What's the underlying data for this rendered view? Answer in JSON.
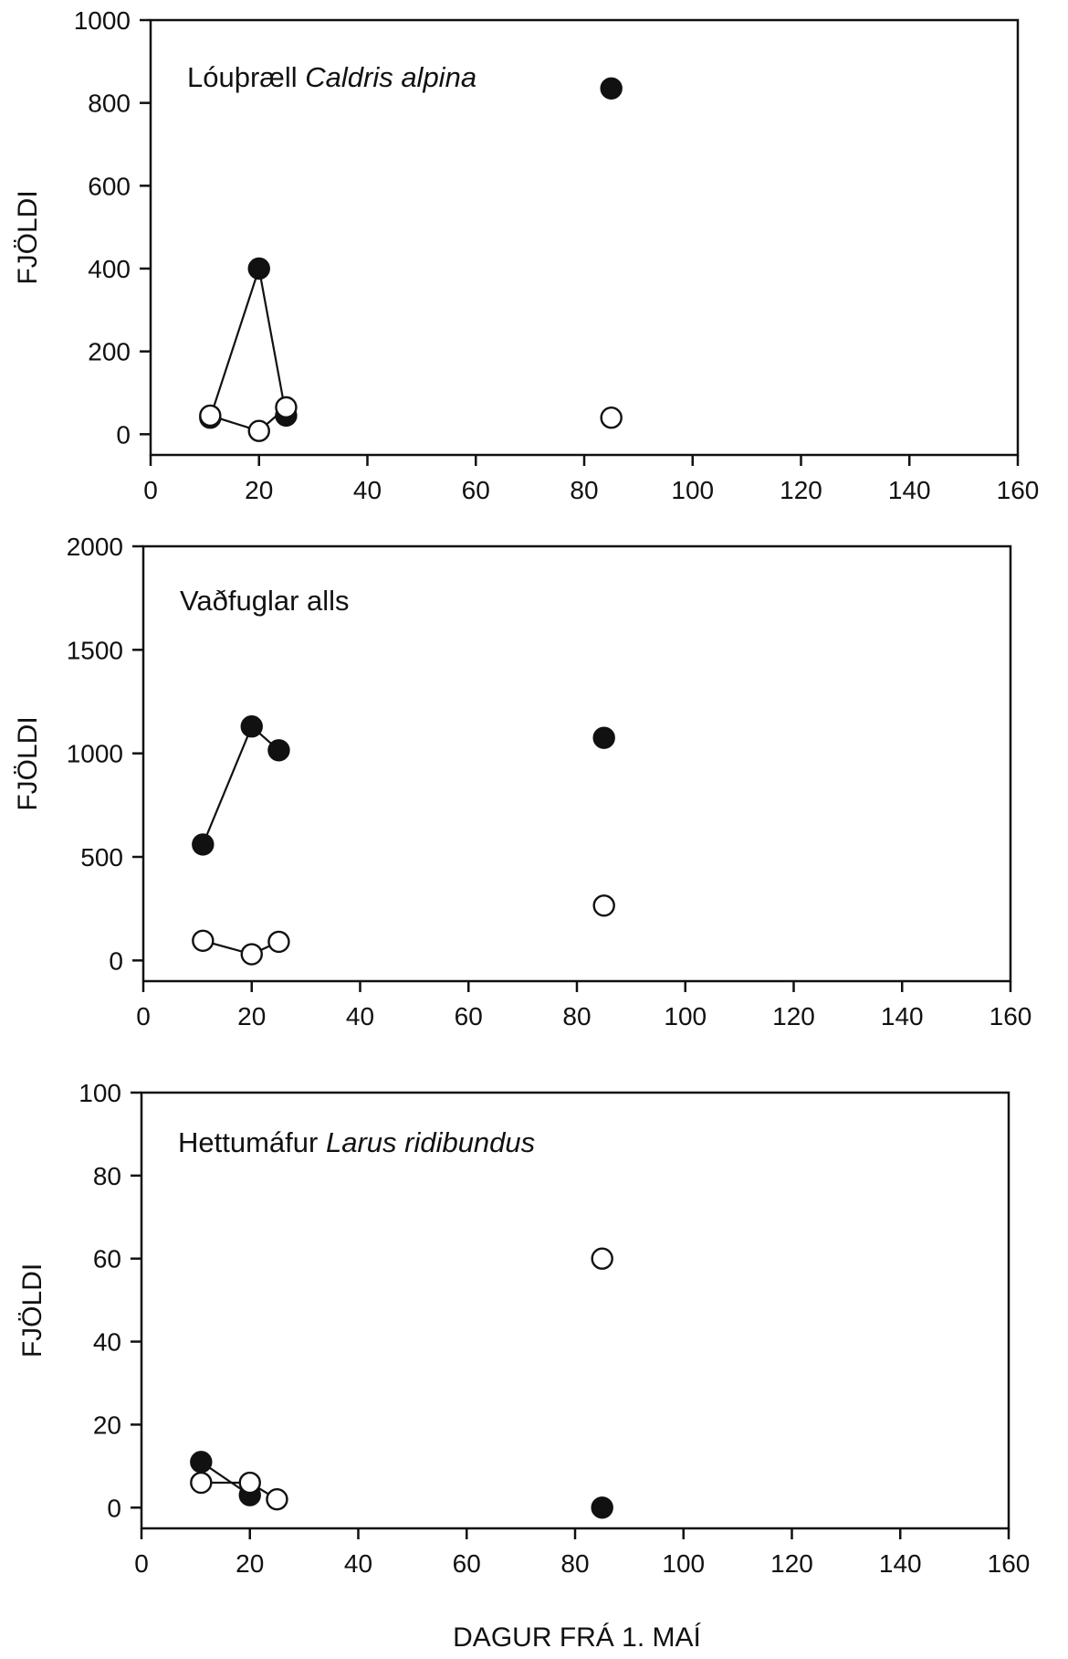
{
  "chart_data": [
    {
      "type": "scatter",
      "title": "Lóuþræll",
      "title_italic": "Caldris alpina",
      "xlabel": "",
      "ylabel": "FJÖLDI",
      "xlim": [
        0,
        160
      ],
      "ylim": [
        -50,
        1000
      ],
      "xticks": [
        0,
        20,
        40,
        60,
        80,
        100,
        120,
        140,
        160
      ],
      "yticks": [
        0,
        200,
        400,
        600,
        800,
        1000
      ],
      "x": [
        11,
        20,
        25,
        85
      ],
      "series": [
        {
          "marker": "filled",
          "values": [
            40,
            400,
            45,
            835
          ],
          "connected_points": 3,
          "color": "#111111"
        },
        {
          "marker": "open",
          "values": [
            45,
            8,
            65,
            40
          ],
          "connected_points": 3,
          "color": "#ffffff"
        }
      ],
      "grid": false
    },
    {
      "type": "scatter",
      "title": "Vaðfuglar alls",
      "title_italic": "",
      "xlabel": "",
      "ylabel": "FJÖLDI",
      "xlim": [
        0,
        160
      ],
      "ylim": [
        -100,
        2000
      ],
      "xticks": [
        0,
        20,
        40,
        60,
        80,
        100,
        120,
        140,
        160
      ],
      "yticks": [
        0,
        500,
        1000,
        1500,
        2000
      ],
      "x": [
        11,
        20,
        25,
        85
      ],
      "series": [
        {
          "marker": "filled",
          "values": [
            560,
            1130,
            1015,
            1075
          ],
          "connected_points": 3,
          "color": "#111111"
        },
        {
          "marker": "open",
          "values": [
            95,
            30,
            90,
            265
          ],
          "connected_points": 3,
          "color": "#ffffff"
        }
      ],
      "grid": false
    },
    {
      "type": "scatter",
      "title": "Hettumáfur",
      "title_italic": "Larus ridibundus",
      "xlabel": "DAGUR FRÁ 1. MAÍ",
      "ylabel": "FJÖLDI",
      "xlim": [
        0,
        160
      ],
      "ylim": [
        -5,
        100
      ],
      "xticks": [
        0,
        20,
        40,
        60,
        80,
        100,
        120,
        140,
        160
      ],
      "yticks": [
        0,
        20,
        40,
        60,
        80,
        100
      ],
      "x": [
        11,
        20,
        25,
        85
      ],
      "series": [
        {
          "marker": "filled",
          "x": [
            11,
            20,
            85
          ],
          "values": [
            11,
            3,
            0
          ],
          "connected_points": 2,
          "color": "#111111"
        },
        {
          "marker": "open",
          "x": [
            11,
            20,
            25,
            85
          ],
          "values": [
            6,
            6,
            2,
            60
          ],
          "connected_points": 3,
          "color": "#ffffff"
        }
      ],
      "grid": false
    }
  ]
}
